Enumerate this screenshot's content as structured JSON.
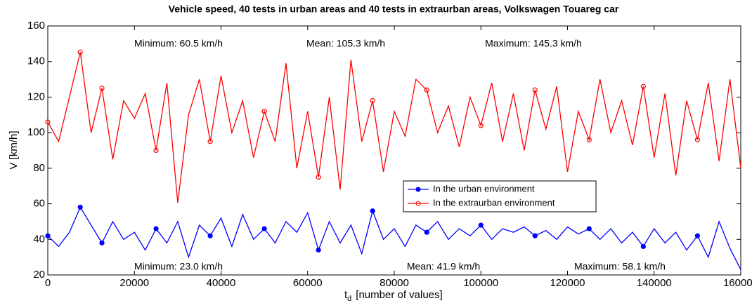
{
  "chart_data": {
    "type": "line",
    "title": "Vehicle speed, 40 tests in urban areas and 40 tests in extraurban areas, Volkswagen Touareg car",
    "ylabel": "V [km/h]",
    "xlabel": {
      "main": "t",
      "subscript": "d",
      "rest": "[number of values]"
    },
    "xlim": [
      0,
      160000
    ],
    "xticks": [
      0,
      20000,
      40000,
      60000,
      80000,
      100000,
      120000,
      140000,
      160000
    ],
    "ylim": [
      20,
      160
    ],
    "yticks": [
      20,
      40,
      60,
      80,
      100,
      120,
      140,
      160
    ],
    "grid": false,
    "legend": "center",
    "x": [
      0,
      2500,
      5000,
      7500,
      10000,
      12500,
      15000,
      17500,
      20000,
      22500,
      25000,
      27500,
      30000,
      32500,
      35000,
      37500,
      40000,
      42500,
      45000,
      47500,
      50000,
      52500,
      55000,
      57500,
      60000,
      62500,
      65000,
      67500,
      70000,
      72500,
      75000,
      77500,
      80000,
      82500,
      85000,
      87500,
      90000,
      92500,
      95000,
      97500,
      100000,
      102500,
      105000,
      107500,
      110000,
      112500,
      115000,
      117500,
      120000,
      122500,
      125000,
      127500,
      130000,
      132500,
      135000,
      137500,
      140000,
      142500,
      145000,
      147500,
      150000,
      152500,
      155000,
      157500,
      160000
    ],
    "series": [
      {
        "name": "In the urban environment",
        "color": "#0000ff",
        "marker": "filled",
        "values": [
          42,
          36,
          44,
          58.1,
          48,
          38,
          50,
          40,
          44,
          34,
          46,
          38,
          50,
          30,
          48,
          42,
          52,
          36,
          54,
          40,
          46,
          38,
          50,
          44,
          55,
          34,
          50,
          38,
          48,
          32,
          56,
          40,
          46,
          36,
          48,
          44,
          50,
          40,
          46,
          42,
          48,
          40,
          46,
          44,
          47,
          42,
          45,
          40,
          47,
          43,
          46,
          40,
          46,
          38,
          44,
          36,
          46,
          38,
          44,
          34,
          42,
          30,
          50,
          35,
          23
        ]
      },
      {
        "name": "In the extraurban environment",
        "color": "#ff0000",
        "marker": "open",
        "values": [
          106,
          95,
          120,
          145.3,
          100,
          125,
          85,
          118,
          108,
          122,
          90,
          128,
          60.5,
          110,
          130,
          95,
          132,
          100,
          118,
          86,
          112,
          95,
          139,
          80,
          112,
          75,
          120,
          68,
          141,
          95,
          118,
          78,
          112,
          98,
          130,
          124,
          100,
          115,
          92,
          120,
          104,
          128,
          95,
          122,
          90,
          124,
          102,
          126,
          78,
          112,
          96,
          130,
          100,
          118,
          93,
          126,
          86,
          122,
          76,
          118,
          96,
          128,
          84,
          130,
          80
        ]
      }
    ],
    "annotations": [
      {
        "text": "Minimum: 60.5 km/h",
        "color": "#ff0000"
      },
      {
        "text": "Mean: 105.3 km/h",
        "color": "#ff0000"
      },
      {
        "text": "Maximum: 145.3 km/h",
        "color": "#ff0000"
      },
      {
        "text": "Minimum: 23.0 km/h",
        "color": "#0000ff"
      },
      {
        "text": "Mean: 41.9 km/h",
        "color": "#0000ff"
      },
      {
        "text": "Maximum: 58.1 km/h",
        "color": "#0000ff"
      }
    ]
  }
}
